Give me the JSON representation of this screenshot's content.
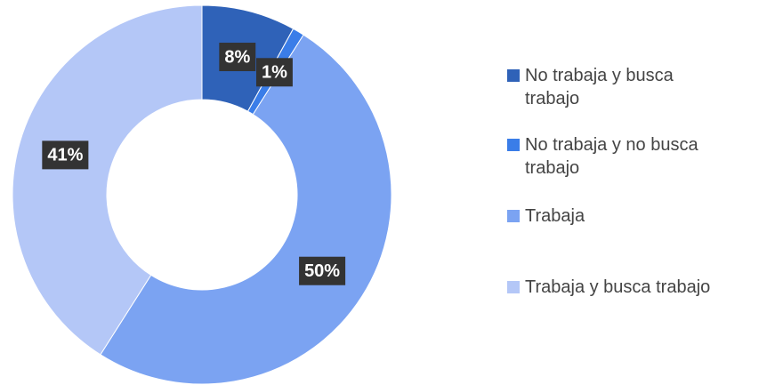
{
  "chart_data": {
    "type": "donut",
    "categories": [
      "No trabaja y busca trabajo",
      "No trabaja y no busca trabajo",
      "Trabaja",
      "Trabaja y busca trabajo"
    ],
    "values": [
      8,
      1,
      50,
      41
    ],
    "value_labels": [
      "8%",
      "1%",
      "50%",
      "41%"
    ],
    "colors": [
      "#2f62b8",
      "#3a7de8",
      "#7ba3f2",
      "#b4c7f7"
    ],
    "legend": "right"
  }
}
